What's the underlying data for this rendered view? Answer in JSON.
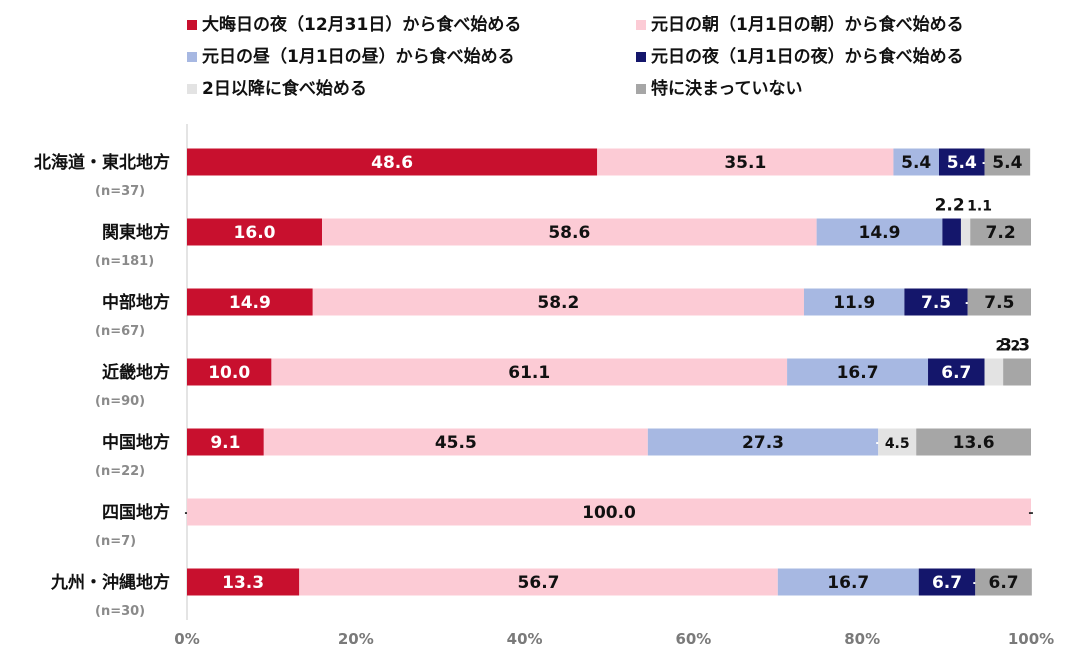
{
  "chart_data": {
    "type": "bar",
    "orientation": "horizontal",
    "stacked": true,
    "percent_scale": true,
    "legend_position": "top",
    "categories": [
      "北海道・東北地方",
      "関東地方",
      "中部地方",
      "近畿地方",
      "中国地方",
      "四国地方",
      "九州・沖縄地方"
    ],
    "sample_sizes": [
      "(n=37)",
      "(n=181)",
      "(n=67)",
      "(n=90)",
      "(n=22)",
      "(n=7)",
      "(n=30)"
    ],
    "series": [
      {
        "name": "大晦日の夜（12月31日）から食べ始める",
        "color": "#c8102e",
        "label_color": "#ffffff",
        "values": [
          48.6,
          16.0,
          14.9,
          10.0,
          9.1,
          0,
          13.3
        ],
        "labels": [
          "48.6",
          "16.0",
          "14.9",
          "10.0",
          "9.1",
          "-",
          "13.3"
        ]
      },
      {
        "name": "元日の朝（1月1日の朝）から食べ始める",
        "color": "#fccbd5",
        "label_color": "#111111",
        "values": [
          35.1,
          58.6,
          58.2,
          61.1,
          45.5,
          100.0,
          56.7
        ],
        "labels": [
          "35.1",
          "58.6",
          "58.2",
          "61.1",
          "45.5",
          "100.0",
          "56.7"
        ]
      },
      {
        "name": "元日の昼（1月1日の昼）から食べ始める",
        "color": "#a7b8e2",
        "label_color": "#111111",
        "values": [
          5.4,
          14.9,
          11.9,
          16.7,
          27.3,
          0,
          16.7
        ],
        "labels": [
          "5.4",
          "14.9",
          "11.9",
          "16.7",
          "27.3",
          "-",
          "16.7"
        ]
      },
      {
        "name": "元日の夜（1月1日の夜）から食べ始める",
        "color": "#14166b",
        "label_color": "#ffffff",
        "values": [
          5.4,
          2.2,
          7.5,
          6.7,
          0,
          0,
          6.7
        ],
        "labels": [
          "5.4",
          "2.2",
          "7.5",
          "6.7",
          "-",
          "-",
          "6.7"
        ]
      },
      {
        "name": "2日以降に食べ始める",
        "color": "#e3e3e3",
        "label_color": "#111111",
        "values": [
          0,
          1.1,
          0,
          2.2,
          4.5,
          0,
          0
        ],
        "labels": [
          "-",
          "1.1",
          "-",
          "2.2",
          "4.5",
          "-",
          "-"
        ]
      },
      {
        "name": "特に決まっていない",
        "color": "#a6a6a6",
        "label_color": "#111111",
        "values": [
          5.4,
          7.2,
          7.5,
          3.3,
          13.6,
          0,
          6.7
        ],
        "labels": [
          "5.4",
          "7.2",
          "7.5",
          "3.3",
          "13.6",
          "-",
          "6.7"
        ]
      }
    ],
    "x_ticks": [
      "0%",
      "20%",
      "40%",
      "60%",
      "80%",
      "100%"
    ],
    "xlim": [
      0,
      100
    ],
    "grid": false
  }
}
